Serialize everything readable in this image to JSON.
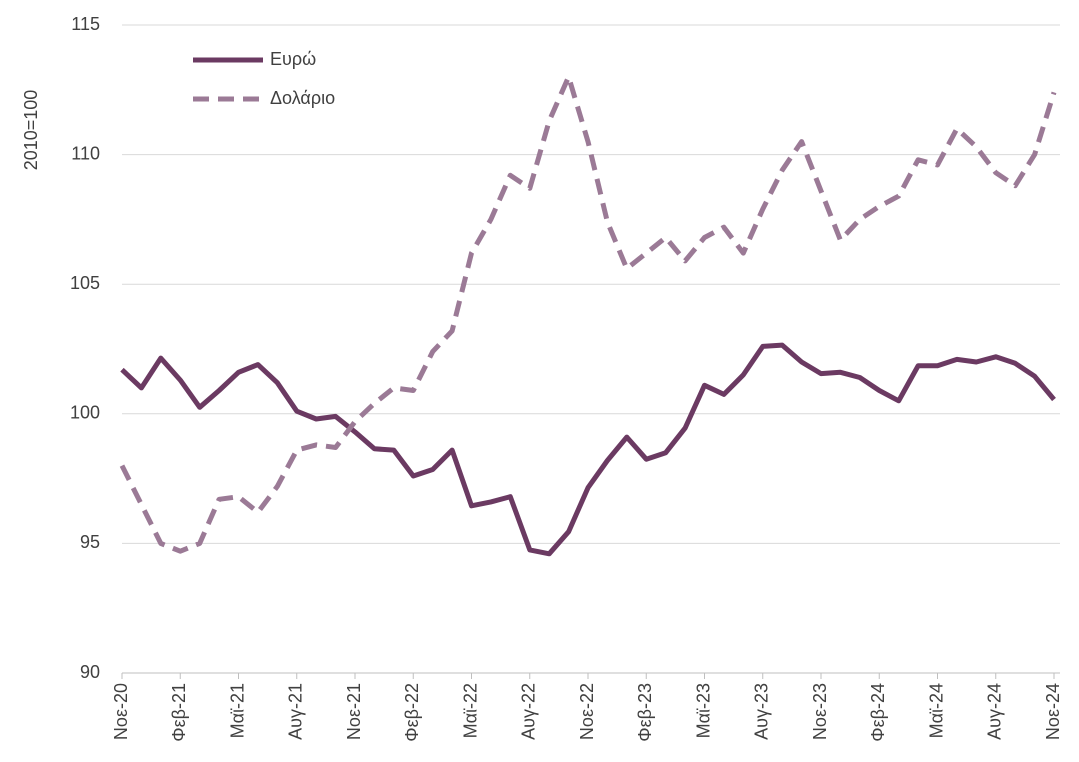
{
  "chart_data": {
    "type": "line",
    "ylabel": "2010=100",
    "categories": [
      "Νοε-20",
      null,
      null,
      "Φεβ-21",
      null,
      null,
      "Μαϊ-21",
      null,
      null,
      "Αυγ-21",
      null,
      null,
      "Νοε-21",
      null,
      null,
      "Φεβ-22",
      null,
      null,
      "Μαϊ-22",
      null,
      null,
      "Αυγ-22",
      null,
      null,
      "Νοε-22",
      null,
      null,
      "Φεβ-23",
      null,
      null,
      "Μαϊ-23",
      null,
      null,
      "Αυγ-23",
      null,
      null,
      "Νοε-23",
      null,
      null,
      "Φεβ-24",
      null,
      null,
      "Μαϊ-24",
      null,
      null,
      "Αυγ-24",
      null,
      null,
      "Νοε-24"
    ],
    "series": [
      {
        "name": "Ευρώ",
        "color": "#6b3a62",
        "dash": false,
        "values": [
          101.7,
          101.0,
          102.15,
          101.3,
          100.25,
          100.9,
          101.6,
          101.9,
          101.2,
          100.1,
          99.8,
          99.9,
          99.3,
          98.65,
          98.6,
          97.6,
          97.85,
          98.6,
          96.45,
          96.6,
          96.8,
          94.75,
          94.6,
          95.45,
          97.15,
          98.2,
          99.1,
          98.25,
          98.5,
          99.45,
          101.1,
          100.75,
          101.5,
          102.6,
          102.65,
          102.0,
          101.55,
          101.6,
          101.4,
          100.9,
          100.5,
          101.85,
          101.85,
          102.1,
          102.0,
          102.2,
          101.95,
          101.45,
          100.55
        ]
      },
      {
        "name": "Δολάριο",
        "color": "#9b7a96",
        "dash": true,
        "values": [
          98.0,
          96.5,
          95.0,
          94.7,
          95.0,
          96.7,
          96.8,
          96.2,
          97.2,
          98.6,
          98.8,
          98.7,
          99.7,
          100.4,
          101.0,
          100.9,
          102.4,
          103.2,
          106.2,
          107.5,
          109.2,
          108.7,
          111.3,
          113.0,
          110.5,
          107.4,
          105.6,
          106.2,
          106.8,
          105.9,
          106.8,
          107.2,
          106.2,
          107.9,
          109.4,
          110.5,
          108.6,
          106.7,
          107.5,
          108.0,
          108.4,
          109.8,
          109.6,
          111.0,
          110.3,
          109.3,
          108.8,
          110.0,
          112.4
        ]
      }
    ],
    "ylim": [
      90,
      115
    ],
    "yticks": [
      90,
      95,
      100,
      105,
      110,
      115
    ],
    "grid": true,
    "legend": "top-left"
  }
}
